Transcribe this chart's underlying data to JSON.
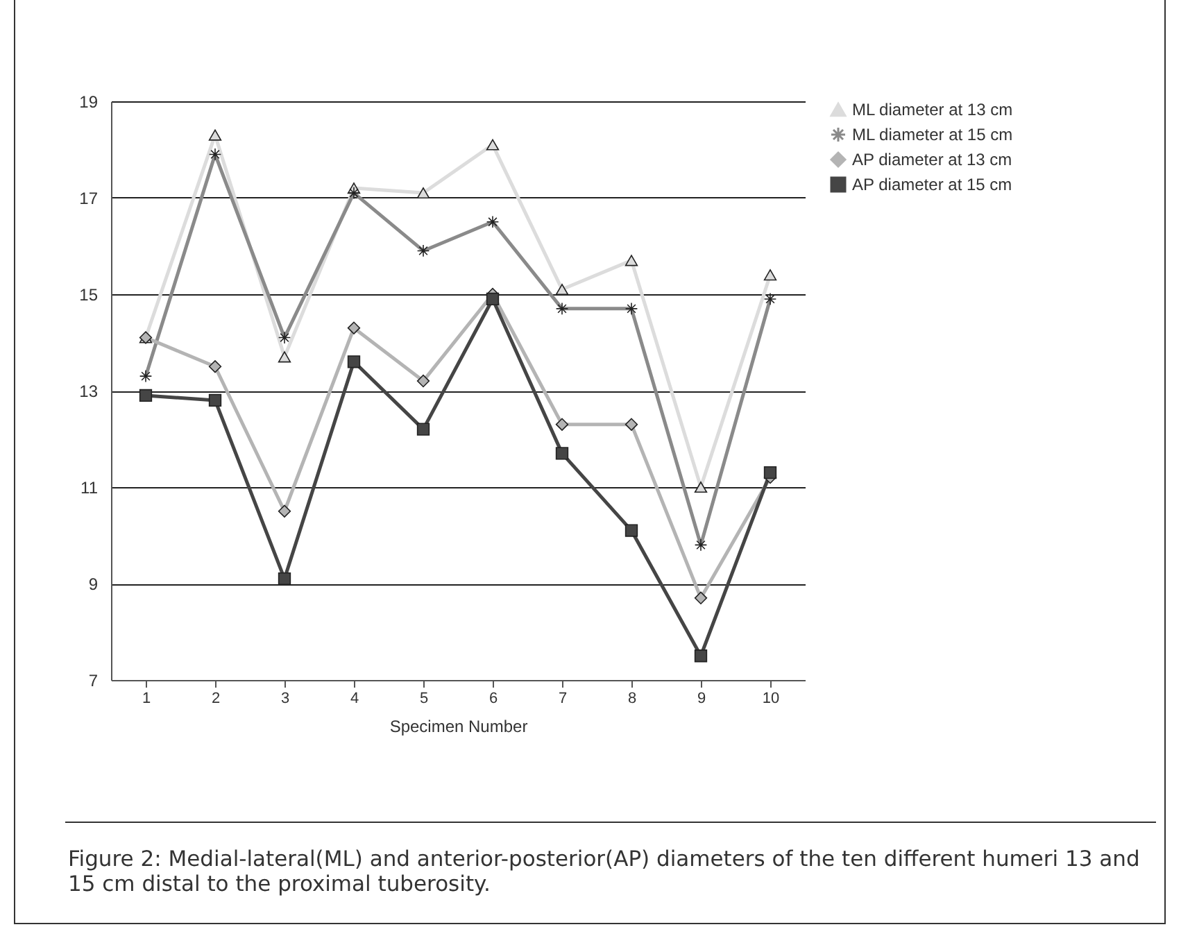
{
  "chart_data": {
    "type": "line",
    "categories": [
      "1",
      "2",
      "3",
      "4",
      "5",
      "6",
      "7",
      "8",
      "9",
      "10"
    ],
    "xlabel": "Specimen Number",
    "series": [
      {
        "name": "ML diameter at 13 cm",
        "color": "#dcdcdc",
        "marker": "triangle",
        "values": [
          14.1,
          18.3,
          13.7,
          17.2,
          17.1,
          18.1,
          15.1,
          15.7,
          11.0,
          15.4
        ]
      },
      {
        "name": "ML diameter at 15 cm",
        "color": "#8a8a8a",
        "marker": "cross",
        "values": [
          13.3,
          17.9,
          14.1,
          17.1,
          15.9,
          16.5,
          14.7,
          14.7,
          9.8,
          14.9
        ]
      },
      {
        "name": "AP diameter at 13 cm",
        "color": "#b4b4b4",
        "marker": "diamond",
        "values": [
          14.1,
          13.5,
          10.5,
          14.3,
          13.2,
          15.0,
          12.3,
          12.3,
          8.7,
          11.2
        ]
      },
      {
        "name": "AP diameter at 15 cm",
        "color": "#454545",
        "marker": "square",
        "values": [
          12.9,
          12.8,
          9.1,
          13.6,
          12.2,
          14.9,
          11.7,
          10.1,
          7.5,
          11.3
        ]
      }
    ],
    "ylim": [
      7,
      19
    ],
    "yticks": [
      7,
      9,
      11,
      13,
      15,
      17,
      19
    ],
    "grid": "y",
    "legend": "right",
    "annotations": [
      "Figure 2: Medial-lateral(ML) and anterior-posterior(AP) diameters of the ten different humeri 13 and 15 cm distal to the proximal tuberosity."
    ]
  }
}
